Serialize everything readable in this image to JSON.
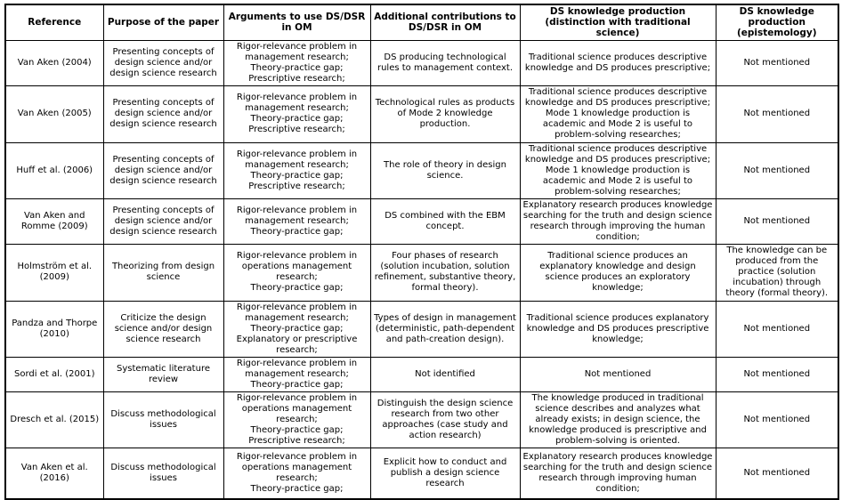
{
  "table": {
    "columns": [
      "Reference",
      "Purpose of the paper",
      "Arguments to use DS/DSR in OM",
      "Additional contributions to DS/DSR in OM",
      "DS knowledge production (distinction with traditional science)",
      "DS knowledge production (epistemology)"
    ],
    "rows": [
      {
        "reference": "Van Aken (2004)",
        "purpose": "Presenting concepts of design science and/or design science research",
        "arguments": "Rigor-relevance problem in management research;\nTheory-practice gap;\nPrescriptive research;",
        "contributions": "DS producing technological rules to management context.",
        "distinction": "Traditional science produces descriptive knowledge and DS produces prescriptive;",
        "epistemology": "Not mentioned"
      },
      {
        "reference": "Van Aken (2005)",
        "purpose": "Presenting concepts of design science and/or design science research",
        "arguments": "Rigor-relevance problem in management research;\nTheory-practice gap;\nPrescriptive research;",
        "contributions": "Technological rules as products of Mode 2 knowledge production.",
        "distinction": "Traditional science produces descriptive knowledge and DS produces prescriptive; Mode 1 knowledge production is academic and Mode 2 is useful to problem-solving researches;",
        "epistemology": "Not mentioned"
      },
      {
        "reference": "Huff et al. (2006)",
        "purpose": "Presenting concepts of design science and/or design science research",
        "arguments": "Rigor-relevance problem in management research;\nTheory-practice gap;\nPrescriptive research;",
        "contributions": "The role of theory in design science.",
        "distinction": "Traditional science produces descriptive knowledge and DS produces prescriptive; Mode 1 knowledge production is academic and Mode 2 is useful to problem-solving researches;",
        "epistemology": "Not mentioned"
      },
      {
        "reference": "Van Aken and Romme (2009)",
        "purpose": "Presenting concepts of design science and/or design science research",
        "arguments": "Rigor-relevance problem in management research;\nTheory-practice gap;",
        "contributions": "DS combined with the EBM concept.",
        "distinction": "Explanatory research produces knowledge searching for the truth and design science research through improving the human condition;",
        "epistemology": "Not mentioned"
      },
      {
        "reference": "Holmström et al. (2009)",
        "purpose": "Theorizing from design science",
        "arguments": "Rigor-relevance problem in operations management research;\nTheory-practice gap;",
        "contributions": "Four phases of research (solution incubation, solution refinement, substantive theory, formal theory).",
        "distinction": "Traditional science produces an explanatory knowledge and design science produces an exploratory knowledge;",
        "epistemology": "The knowledge can be produced from the practice (solution incubation) through theory (formal theory)."
      },
      {
        "reference": "Pandza and Thorpe (2010)",
        "purpose": "Criticize the design science and/or design science research",
        "arguments": "Rigor-relevance problem in management research;\nTheory-practice gap;\nExplanatory or prescriptive research;",
        "contributions": "Types of design in management (deterministic, path-dependent and path-creation design).",
        "distinction": "Traditional science produces explanatory knowledge and DS produces prescriptive knowledge;",
        "epistemology": "Not mentioned"
      },
      {
        "reference": "Sordi et al. (2001)",
        "purpose": "Systematic literature review",
        "arguments": "Rigor-relevance problem in management research;\nTheory-practice gap;",
        "contributions": "Not identified",
        "distinction": "Not mentioned",
        "epistemology": "Not mentioned"
      },
      {
        "reference": "Dresch et al. (2015)",
        "purpose": "Discuss methodological issues",
        "arguments": "Rigor-relevance problem in operations management research;\nTheory-practice gap;\nPrescriptive research;",
        "contributions": "Distinguish the design science research from two other approaches (case study and action research)",
        "distinction": "The knowledge produced in traditional science describes and analyzes what already exists; in design science, the knowledge produced is prescriptive and problem-solving is oriented.",
        "epistemology": "Not mentioned"
      },
      {
        "reference": "Van Aken et al. (2016)",
        "purpose": "Discuss methodological issues",
        "arguments": "Rigor-relevance problem in operations management research;\nTheory-practice gap;",
        "contributions": "Explicit how to conduct and publish a design science research",
        "distinction": "Explanatory research produces knowledge searching for the truth and design science research through improving human condition;",
        "epistemology": "Not mentioned"
      }
    ]
  }
}
